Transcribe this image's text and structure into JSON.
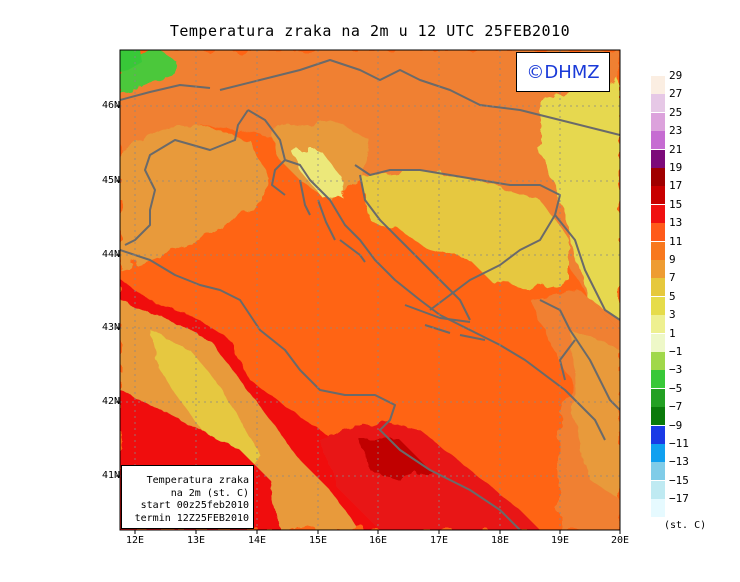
{
  "title": "Temperatura zraka na 2m u 12 UTC 25FEB2010",
  "logo": "©DHMZ",
  "infobox": {
    "line1": "Temperatura zraka",
    "line2": "na 2m (st. C)",
    "line3": "start 00z25feb2010",
    "line4": "termin 12Z25FEB2010"
  },
  "lat_labels": [
    "46N",
    "45N",
    "44N",
    "43N",
    "42N",
    "41N"
  ],
  "lon_labels": [
    "12E",
    "13E",
    "14E",
    "15E",
    "16E",
    "17E",
    "18E",
    "19E",
    "20E"
  ],
  "legend": {
    "units": "(st. C)",
    "labels": [
      "29",
      "27",
      "25",
      "23",
      "21",
      "19",
      "17",
      "15",
      "13",
      "11",
      "9",
      "7",
      "5",
      "3",
      "1",
      "−1",
      "−3",
      "−5",
      "−7",
      "−9",
      "−11",
      "−13",
      "−15",
      "−17"
    ],
    "colors": [
      "#fbeee2",
      "#e6c8e6",
      "#dca2dc",
      "#c66cd2",
      "#7c0a7a",
      "#a00000",
      "#c80000",
      "#f01010",
      "#ff5a1a",
      "#f8781e",
      "#ee9c32",
      "#e6c83c",
      "#e6dc4a",
      "#eef090",
      "#eef8c8",
      "#a0d84a",
      "#38c838",
      "#22a022",
      "#0a7a0a",
      "#1a3ae6",
      "#10a0f0",
      "#80cce8",
      "#bfeaf2",
      "#e6faff"
    ]
  },
  "map_colors": {
    "sea": "#ff6414",
    "land_warm": "#f08030",
    "land_mild": "#e89a3a",
    "land_cool": "#e6c840",
    "land_cold": "#ece87a",
    "hot": "#e81818",
    "dark_hot": "#c00000",
    "green": "#4cc83a",
    "coast": "#6a6a6a"
  }
}
